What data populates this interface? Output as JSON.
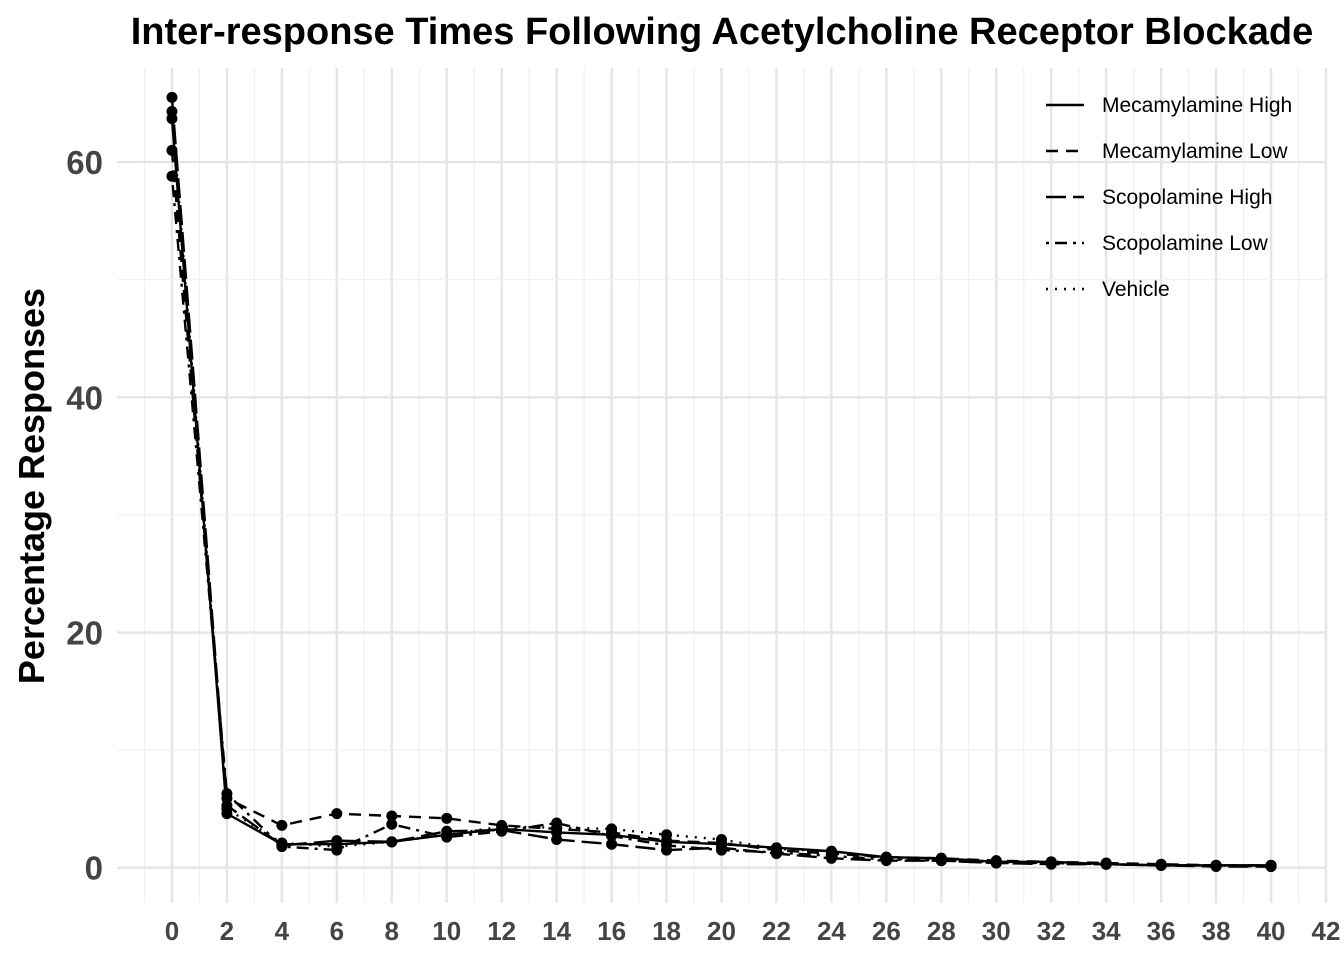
{
  "chart_data": {
    "type": "line",
    "title": "Inter-response Times Following Acetylcholine Receptor Blockade",
    "xlabel": "",
    "ylabel": "Percentage Responses",
    "x": [
      0,
      2,
      4,
      6,
      8,
      10,
      12,
      14,
      16,
      18,
      20,
      22,
      24,
      26,
      28,
      30,
      32,
      34,
      36,
      38,
      40
    ],
    "x_ticks": [
      0,
      2,
      4,
      6,
      8,
      10,
      12,
      14,
      16,
      18,
      20,
      22,
      24,
      26,
      28,
      30,
      32,
      34,
      36,
      38,
      40,
      42
    ],
    "y_ticks": [
      0,
      20,
      40,
      60
    ],
    "xlim": [
      -2,
      42
    ],
    "ylim": [
      -3,
      68
    ],
    "grid": true,
    "legend_position": "top-right",
    "series": [
      {
        "name": "Mecamylamine High",
        "dash": "solid",
        "values": [
          63.7,
          4.6,
          2.0,
          2.0,
          2.2,
          2.8,
          3.3,
          3.0,
          2.8,
          2.2,
          2.0,
          1.7,
          1.4,
          0.9,
          0.8,
          0.5,
          0.5,
          0.3,
          0.2,
          0.2,
          0.2
        ]
      },
      {
        "name": "Mecamylamine Low",
        "dash": "dashed",
        "values": [
          61.0,
          5.9,
          3.6,
          4.6,
          4.4,
          4.2,
          3.6,
          3.3,
          3.0,
          2.3,
          2.1,
          1.5,
          1.2,
          0.9,
          0.8,
          0.6,
          0.5,
          0.4,
          0.3,
          0.2,
          0.2
        ]
      },
      {
        "name": "Scopolamine High",
        "dash": "longdash",
        "values": [
          65.5,
          5.3,
          1.9,
          2.3,
          2.2,
          3.1,
          3.2,
          2.4,
          2.0,
          1.5,
          1.7,
          1.2,
          0.8,
          0.6,
          0.6,
          0.4,
          0.3,
          0.3,
          0.2,
          0.1,
          0.1
        ]
      },
      {
        "name": "Scopolamine Low",
        "dash": "dotdash",
        "values": [
          58.8,
          6.3,
          1.8,
          1.5,
          3.7,
          2.6,
          3.1,
          3.8,
          2.7,
          1.9,
          1.5,
          1.3,
          1.0,
          0.7,
          0.6,
          0.4,
          0.4,
          0.3,
          0.2,
          0.2,
          0.1
        ]
      },
      {
        "name": "Vehicle",
        "dash": "dotted",
        "values": [
          64.3,
          5.0,
          2.1,
          1.8,
          2.2,
          2.8,
          3.5,
          3.4,
          3.3,
          2.8,
          2.4,
          1.6,
          1.4,
          0.8,
          0.6,
          0.5,
          0.4,
          0.3,
          0.2,
          0.2,
          0.2
        ]
      }
    ]
  },
  "colors": {
    "line": "#000000",
    "grid_major": "#e5e5e5",
    "grid_minor": "#f0f0f0",
    "tick_text": "#444444",
    "background": "#ffffff"
  }
}
